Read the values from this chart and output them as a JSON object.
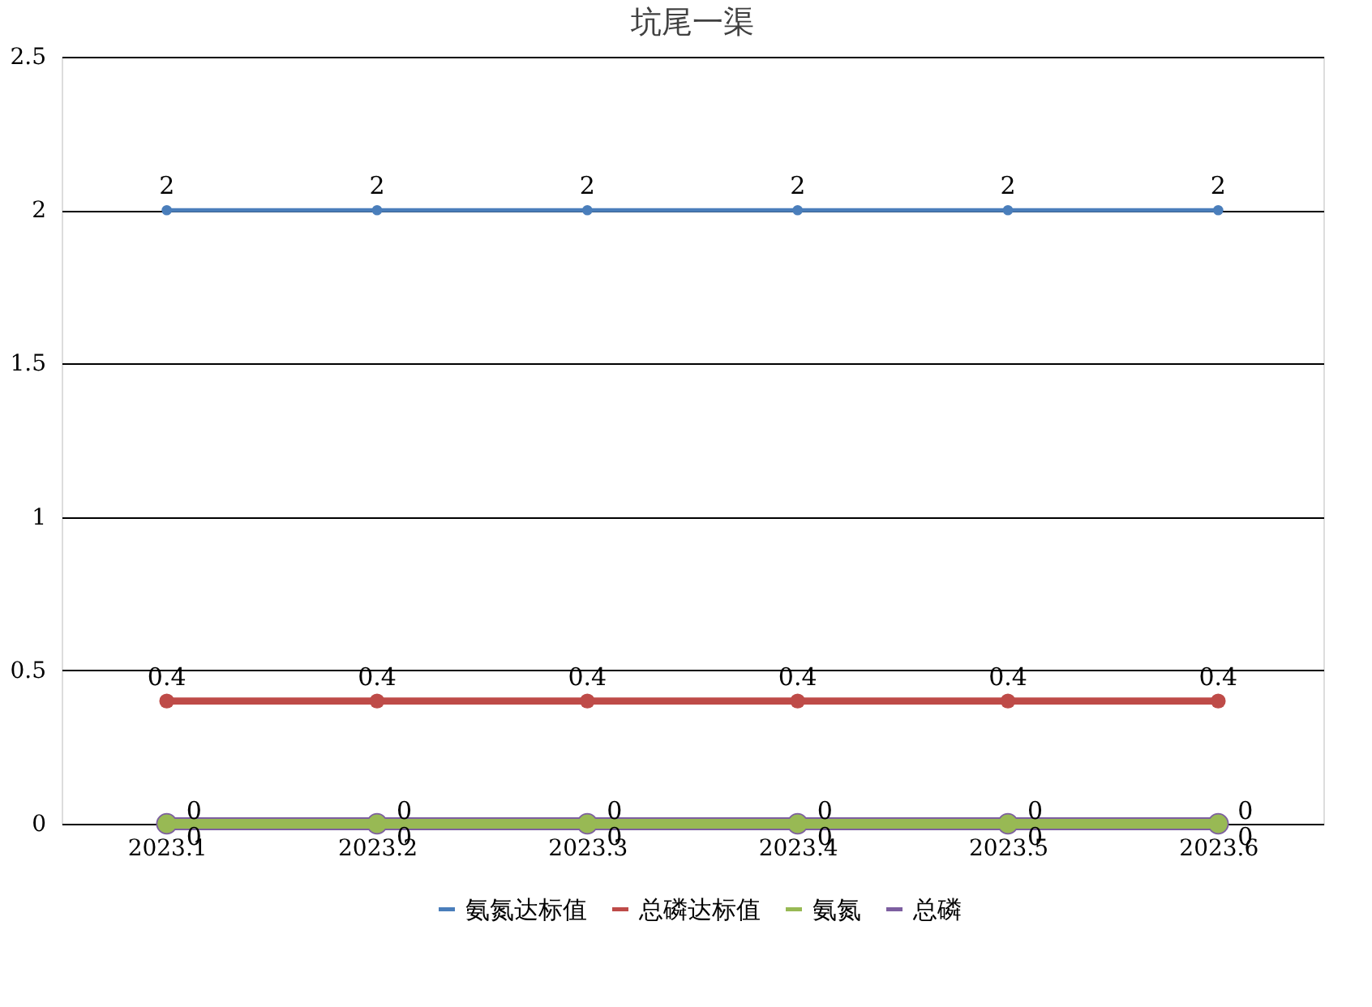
{
  "chart_data": {
    "type": "line",
    "title": "坑尾一渠",
    "categories": [
      "2023.1",
      "2023.2",
      "2023.3",
      "2023.4",
      "2023.5",
      "2023.6"
    ],
    "series": [
      {
        "name": "氨氮达标值",
        "color": "#4a7ebb",
        "values": [
          2,
          2,
          2,
          2,
          2,
          2
        ]
      },
      {
        "name": "总磷达标值",
        "color": "#be4b48",
        "values": [
          0.4,
          0.4,
          0.4,
          0.4,
          0.4,
          0.4
        ]
      },
      {
        "name": "氨氮",
        "color": "#98b954",
        "values": [
          0,
          0,
          0,
          0,
          0,
          0
        ]
      },
      {
        "name": "总磷",
        "color": "#7d5fa0",
        "values": [
          0,
          0,
          0,
          0,
          0,
          0
        ]
      }
    ],
    "ylim": [
      0,
      2.5
    ],
    "yticks": [
      0,
      0.5,
      1,
      1.5,
      2,
      2.5
    ],
    "grid": "y",
    "legend": "bottom",
    "marker": "circle",
    "line_style": "solid",
    "data_labels": true
  }
}
